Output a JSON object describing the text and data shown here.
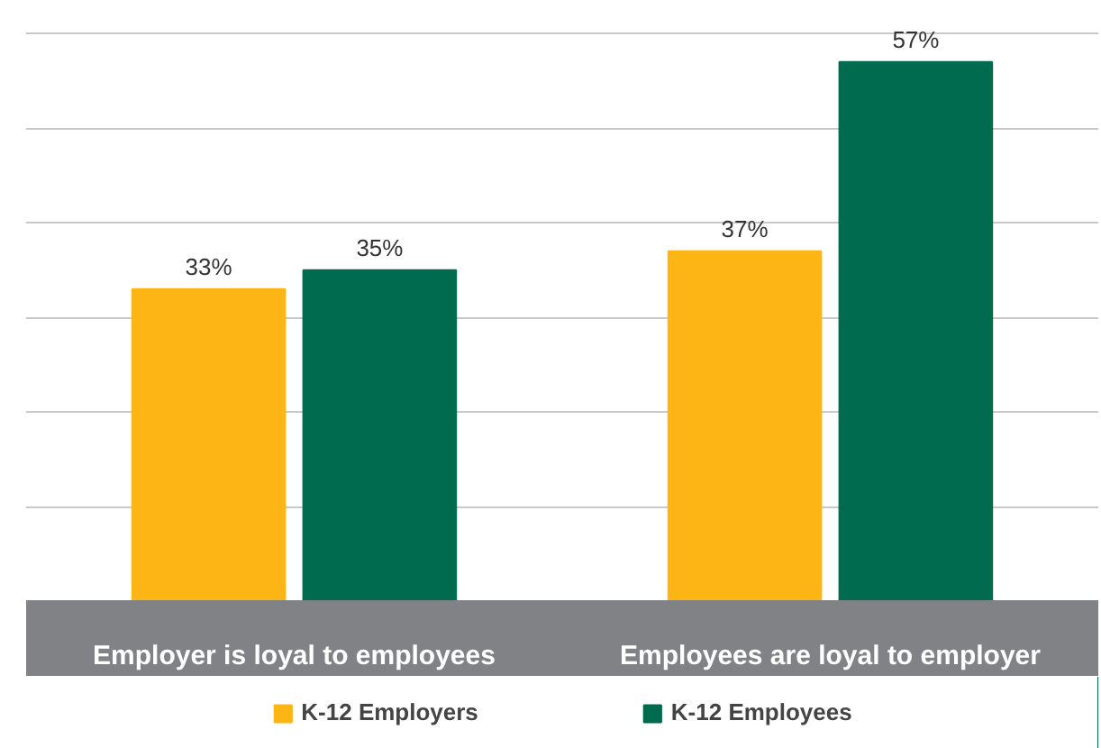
{
  "chart_data": {
    "type": "bar",
    "categories": [
      "Employer is loyal to employees",
      "Employees are loyal to employer"
    ],
    "series": [
      {
        "name": "K-12 Employers",
        "color": "#fdb515",
        "values": [
          33,
          37
        ],
        "value_labels": [
          "33%",
          "37%"
        ]
      },
      {
        "name": "K-12 Employees",
        "color": "#006b4f",
        "values": [
          35,
          57
        ],
        "value_labels": [
          "35%",
          "57%"
        ]
      }
    ],
    "grid": "y",
    "legend": "bottom",
    "tick_labels": "x"
  }
}
